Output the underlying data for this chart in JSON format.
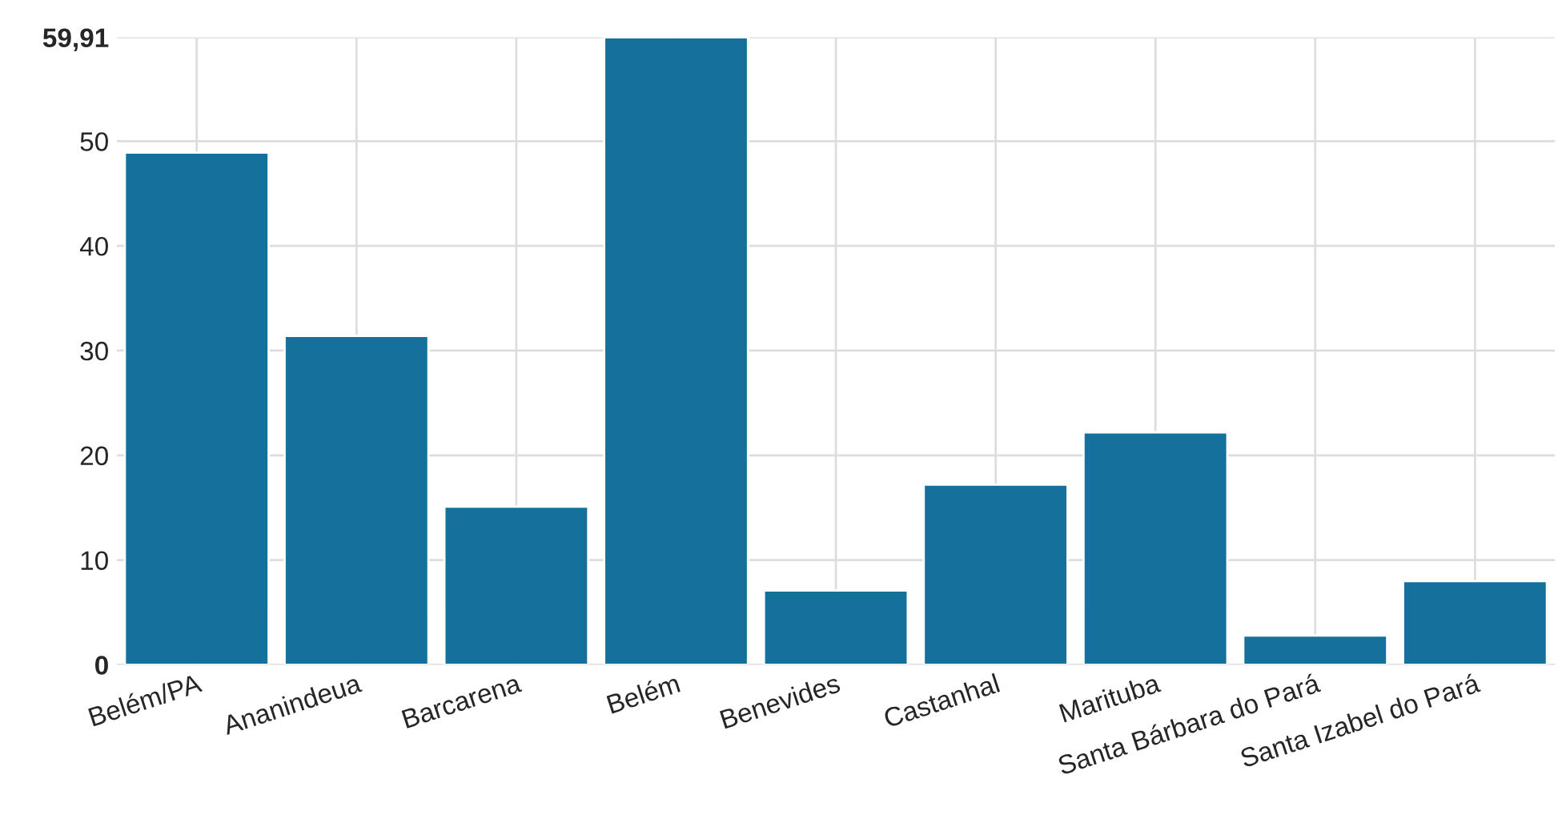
{
  "chart_data": {
    "type": "bar",
    "categories": [
      "Belém/PA",
      "Ananindeua",
      "Barcarena",
      "Belém",
      "Benevides",
      "Castanhal",
      "Marituba",
      "Santa Bárbara do Pará",
      "Santa Izabel do Pará"
    ],
    "values": [
      48.9,
      31.4,
      15.1,
      59.91,
      7.1,
      17.2,
      22.2,
      2.8,
      8.0
    ],
    "color": "#15709c",
    "ylim": [
      0,
      59.91
    ],
    "yticks": [
      0,
      10,
      20,
      30,
      40,
      50,
      {
        "value": 59.91,
        "label": "59,91"
      }
    ],
    "grid": true
  }
}
